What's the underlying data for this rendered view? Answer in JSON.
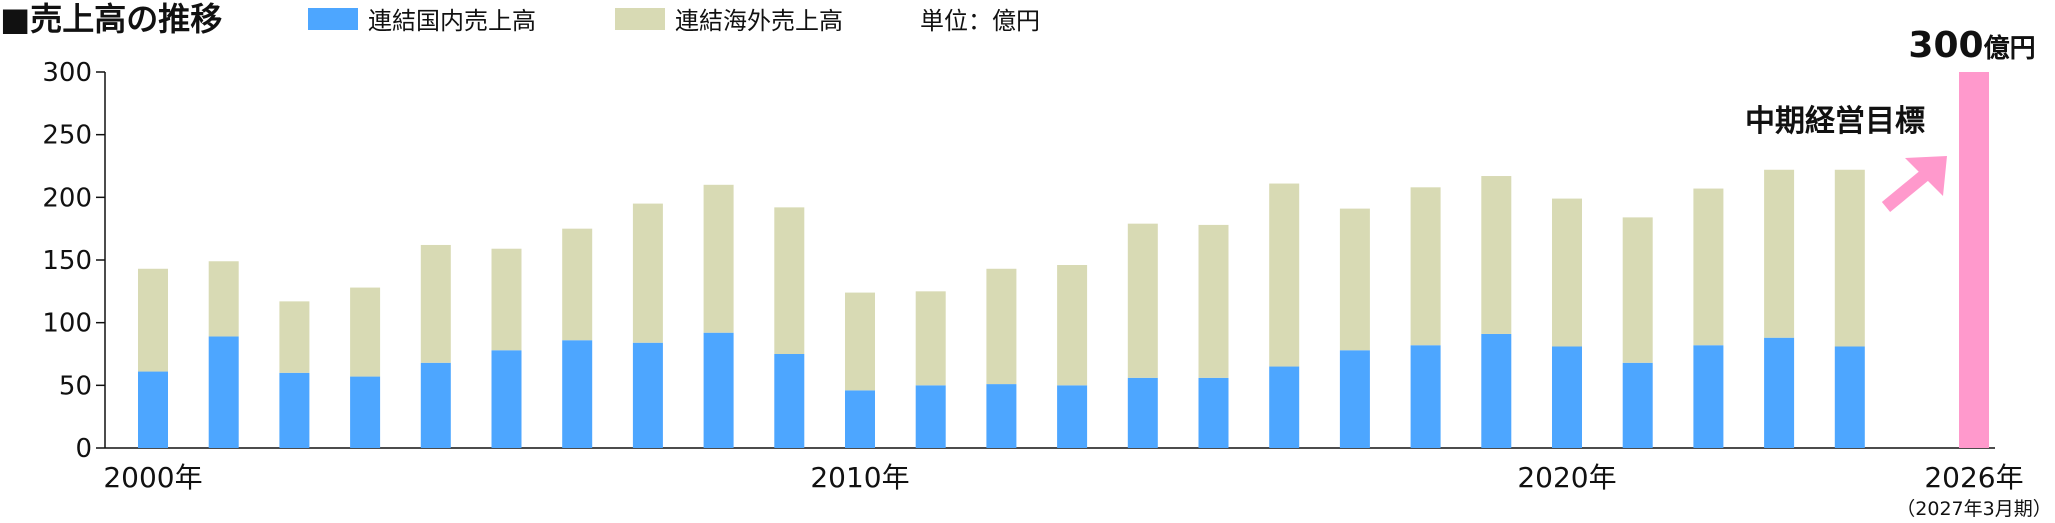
{
  "title": "■売上高の推移",
  "unit_label": "単位：億円",
  "chart_data": {
    "type": "bar",
    "stacked": true,
    "ylim": [
      0,
      300
    ],
    "yticks": [
      0,
      50,
      100,
      150,
      200,
      250,
      300
    ],
    "grid": false,
    "legend_position": "top",
    "categories": [
      "2000",
      "2001",
      "2002",
      "2003",
      "2004",
      "2005",
      "2006",
      "2007",
      "2008",
      "2009",
      "2010",
      "2011",
      "2012",
      "2013",
      "2014",
      "2015",
      "2016",
      "2017",
      "2018",
      "2019",
      "2020",
      "2021",
      "2022",
      "2023",
      "2024",
      "2026"
    ],
    "x_tick_labels": [
      {
        "category": "2000",
        "label": "2000年"
      },
      {
        "category": "2010",
        "label": "2010年"
      },
      {
        "category": "2020",
        "label": "2020年"
      },
      {
        "category": "2026",
        "label": "2026年",
        "sublabel": "（2027年3月期）"
      }
    ],
    "series": [
      {
        "name": "連結国内売上高",
        "color": "#4da6ff",
        "values": [
          61,
          89,
          60,
          57,
          68,
          78,
          86,
          84,
          92,
          75,
          46,
          50,
          51,
          50,
          56,
          56,
          65,
          78,
          82,
          91,
          81,
          68,
          82,
          88,
          81,
          null
        ]
      },
      {
        "name": "連結海外売上高",
        "color": "#d8dab4",
        "values": [
          82,
          60,
          57,
          71,
          94,
          81,
          89,
          111,
          118,
          117,
          78,
          75,
          92,
          96,
          123,
          122,
          146,
          113,
          126,
          126,
          118,
          116,
          125,
          134,
          141,
          null
        ]
      }
    ],
    "target": {
      "category": "2026",
      "value": 300,
      "color": "#ff99cc",
      "value_label": "300",
      "unit_label": "億円",
      "label": "中期経営目標"
    },
    "arrow_color": "#ff99cc"
  }
}
